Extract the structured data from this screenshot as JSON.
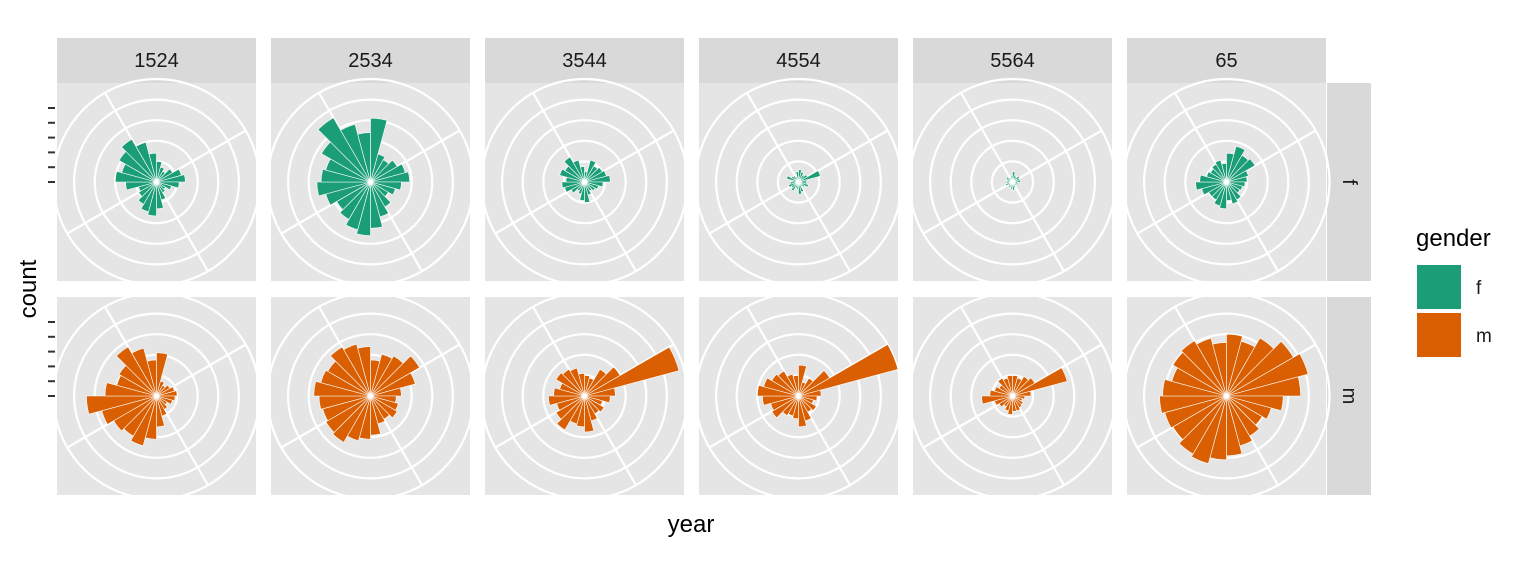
{
  "chart_data": {
    "type": "polar-bar",
    "facet_columns": [
      "1524",
      "2534",
      "3544",
      "4554",
      "5564",
      "65"
    ],
    "facet_rows": [
      "f",
      "m"
    ],
    "xlabel": "year",
    "ylabel": "count",
    "legend": {
      "title": "gender",
      "position": "right",
      "entries": [
        {
          "label": "f",
          "color": "#1B9E77"
        },
        {
          "label": "m",
          "color": "#D95F02"
        }
      ]
    },
    "grid": true,
    "n_sectors": 24,
    "r_max": 1.0,
    "r_breaks": [
      0.2,
      0.4,
      0.6,
      0.8,
      1.0
    ],
    "panels": [
      {
        "column": "1524",
        "gender": "f",
        "values": [
          0.2,
          0.15,
          0.12,
          0.18,
          0.25,
          0.28,
          0.22,
          0.15,
          0.1,
          0.12,
          0.18,
          0.26,
          0.33,
          0.3,
          0.25,
          0.2,
          0.18,
          0.3,
          0.4,
          0.35,
          0.42,
          0.48,
          0.4,
          0.28
        ]
      },
      {
        "column": "2534",
        "gender": "f",
        "values": [
          0.62,
          0.28,
          0.25,
          0.3,
          0.35,
          0.38,
          0.3,
          0.25,
          0.2,
          0.28,
          0.35,
          0.45,
          0.52,
          0.48,
          0.42,
          0.38,
          0.45,
          0.52,
          0.48,
          0.45,
          0.55,
          0.72,
          0.58,
          0.48
        ]
      },
      {
        "column": "3544",
        "gender": "f",
        "values": [
          0.1,
          0.22,
          0.18,
          0.2,
          0.22,
          0.25,
          0.18,
          0.14,
          0.12,
          0.1,
          0.13,
          0.2,
          0.18,
          0.12,
          0.1,
          0.15,
          0.2,
          0.22,
          0.18,
          0.25,
          0.22,
          0.28,
          0.22,
          0.15
        ]
      },
      {
        "column": "4554",
        "gender": "f",
        "values": [
          0.12,
          0.1,
          0.08,
          0.1,
          0.22,
          0.08,
          0.08,
          0.1,
          0.07,
          0.05,
          0.1,
          0.12,
          0.07,
          0.06,
          0.1,
          0.08,
          0.1,
          0.08,
          0.06,
          0.12,
          0.08,
          0.07,
          0.05,
          0.1
        ]
      },
      {
        "column": "5564",
        "gender": "f",
        "values": [
          0.1,
          0.07,
          0.06,
          0.08,
          0.07,
          0.08,
          0.05,
          0.06,
          0.05,
          0.04,
          0.06,
          0.08,
          0.07,
          0.05,
          0.06,
          0.05,
          0.07,
          0.06,
          0.05,
          0.06,
          0.07,
          0.05,
          0.04,
          0.06
        ]
      },
      {
        "column": "65",
        "gender": "f",
        "values": [
          0.28,
          0.36,
          0.3,
          0.32,
          0.22,
          0.2,
          0.18,
          0.16,
          0.15,
          0.2,
          0.22,
          0.18,
          0.26,
          0.24,
          0.2,
          0.2,
          0.25,
          0.3,
          0.26,
          0.2,
          0.18,
          0.2,
          0.22,
          0.18
        ]
      },
      {
        "column": "1524",
        "gender": "m",
        "values": [
          0.42,
          0.15,
          0.12,
          0.15,
          0.18,
          0.2,
          0.18,
          0.16,
          0.12,
          0.15,
          0.2,
          0.3,
          0.42,
          0.5,
          0.45,
          0.48,
          0.55,
          0.68,
          0.5,
          0.4,
          0.42,
          0.55,
          0.48,
          0.35
        ]
      },
      {
        "column": "2534",
        "gender": "m",
        "values": [
          0.35,
          0.42,
          0.45,
          0.55,
          0.45,
          0.3,
          0.25,
          0.28,
          0.3,
          0.26,
          0.28,
          0.38,
          0.42,
          0.45,
          0.52,
          0.5,
          0.48,
          0.5,
          0.55,
          0.5,
          0.48,
          0.55,
          0.52,
          0.48
        ]
      },
      {
        "column": "3544",
        "gender": "m",
        "values": [
          0.2,
          0.18,
          0.3,
          0.4,
          0.95,
          0.3,
          0.25,
          0.18,
          0.22,
          0.2,
          0.25,
          0.35,
          0.3,
          0.28,
          0.38,
          0.32,
          0.28,
          0.35,
          0.3,
          0.25,
          0.32,
          0.3,
          0.28,
          0.22
        ]
      },
      {
        "column": "4554",
        "gender": "m",
        "values": [
          0.3,
          0.14,
          0.2,
          0.35,
          1.0,
          0.22,
          0.18,
          0.15,
          0.2,
          0.18,
          0.25,
          0.3,
          0.22,
          0.2,
          0.22,
          0.3,
          0.28,
          0.35,
          0.4,
          0.35,
          0.3,
          0.28,
          0.22,
          0.2
        ]
      },
      {
        "column": "5564",
        "gender": "m",
        "values": [
          0.2,
          0.18,
          0.22,
          0.25,
          0.55,
          0.18,
          0.12,
          0.1,
          0.12,
          0.13,
          0.15,
          0.15,
          0.18,
          0.15,
          0.12,
          0.15,
          0.18,
          0.3,
          0.22,
          0.18,
          0.15,
          0.2,
          0.18,
          0.2
        ]
      },
      {
        "column": "65",
        "gender": "m",
        "values": [
          0.6,
          0.55,
          0.65,
          0.75,
          0.82,
          0.72,
          0.55,
          0.45,
          0.4,
          0.45,
          0.5,
          0.58,
          0.62,
          0.68,
          0.65,
          0.6,
          0.62,
          0.65,
          0.62,
          0.55,
          0.6,
          0.62,
          0.58,
          0.52
        ]
      }
    ]
  }
}
